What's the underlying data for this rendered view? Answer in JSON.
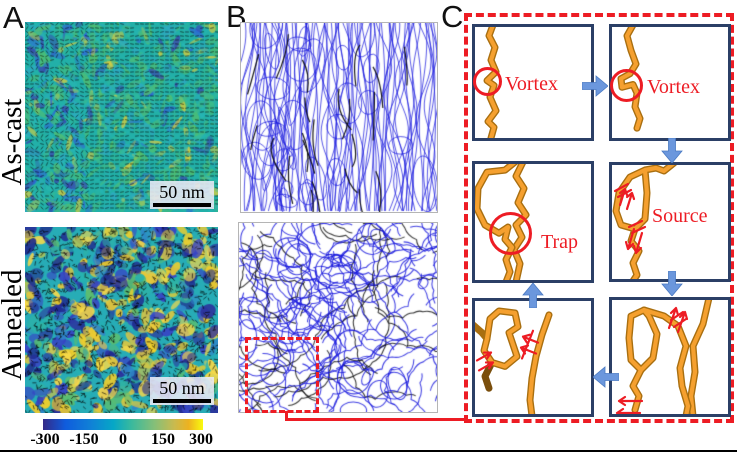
{
  "figure": {
    "panelA": {
      "label": "A",
      "rows": [
        {
          "label": "As-cast",
          "scalebar": "50 nm"
        },
        {
          "label": "Annealed",
          "scalebar": "50 nm"
        }
      ],
      "colorbar": {
        "ticks": [
          "-300",
          "-150",
          "0",
          "150",
          "300"
        ],
        "min": -300,
        "max": 300,
        "colormap_stops": [
          "#352a87",
          "#0f5cdd",
          "#1081d6",
          "#06a7c6",
          "#38b99e",
          "#87bf77",
          "#c9ba4f",
          "#edb220",
          "#f9fb0e"
        ]
      }
    },
    "panelB": {
      "label": "B"
    },
    "panelC": {
      "label": "C",
      "box_labels": [
        "Vortex",
        "Vortex",
        "Trap",
        "Source",
        "",
        ""
      ]
    },
    "colors": {
      "annotation_red": "#ed1c24",
      "flow_arrow_blue": "#6b97dd",
      "flow_arrow_edge": "#4a7ac2",
      "box_border_navy": "#2b3f66",
      "chain_orange": "#f5a02f",
      "chain_shadow": "#a96f10",
      "skeleton_blue": "#1616dd"
    }
  }
}
